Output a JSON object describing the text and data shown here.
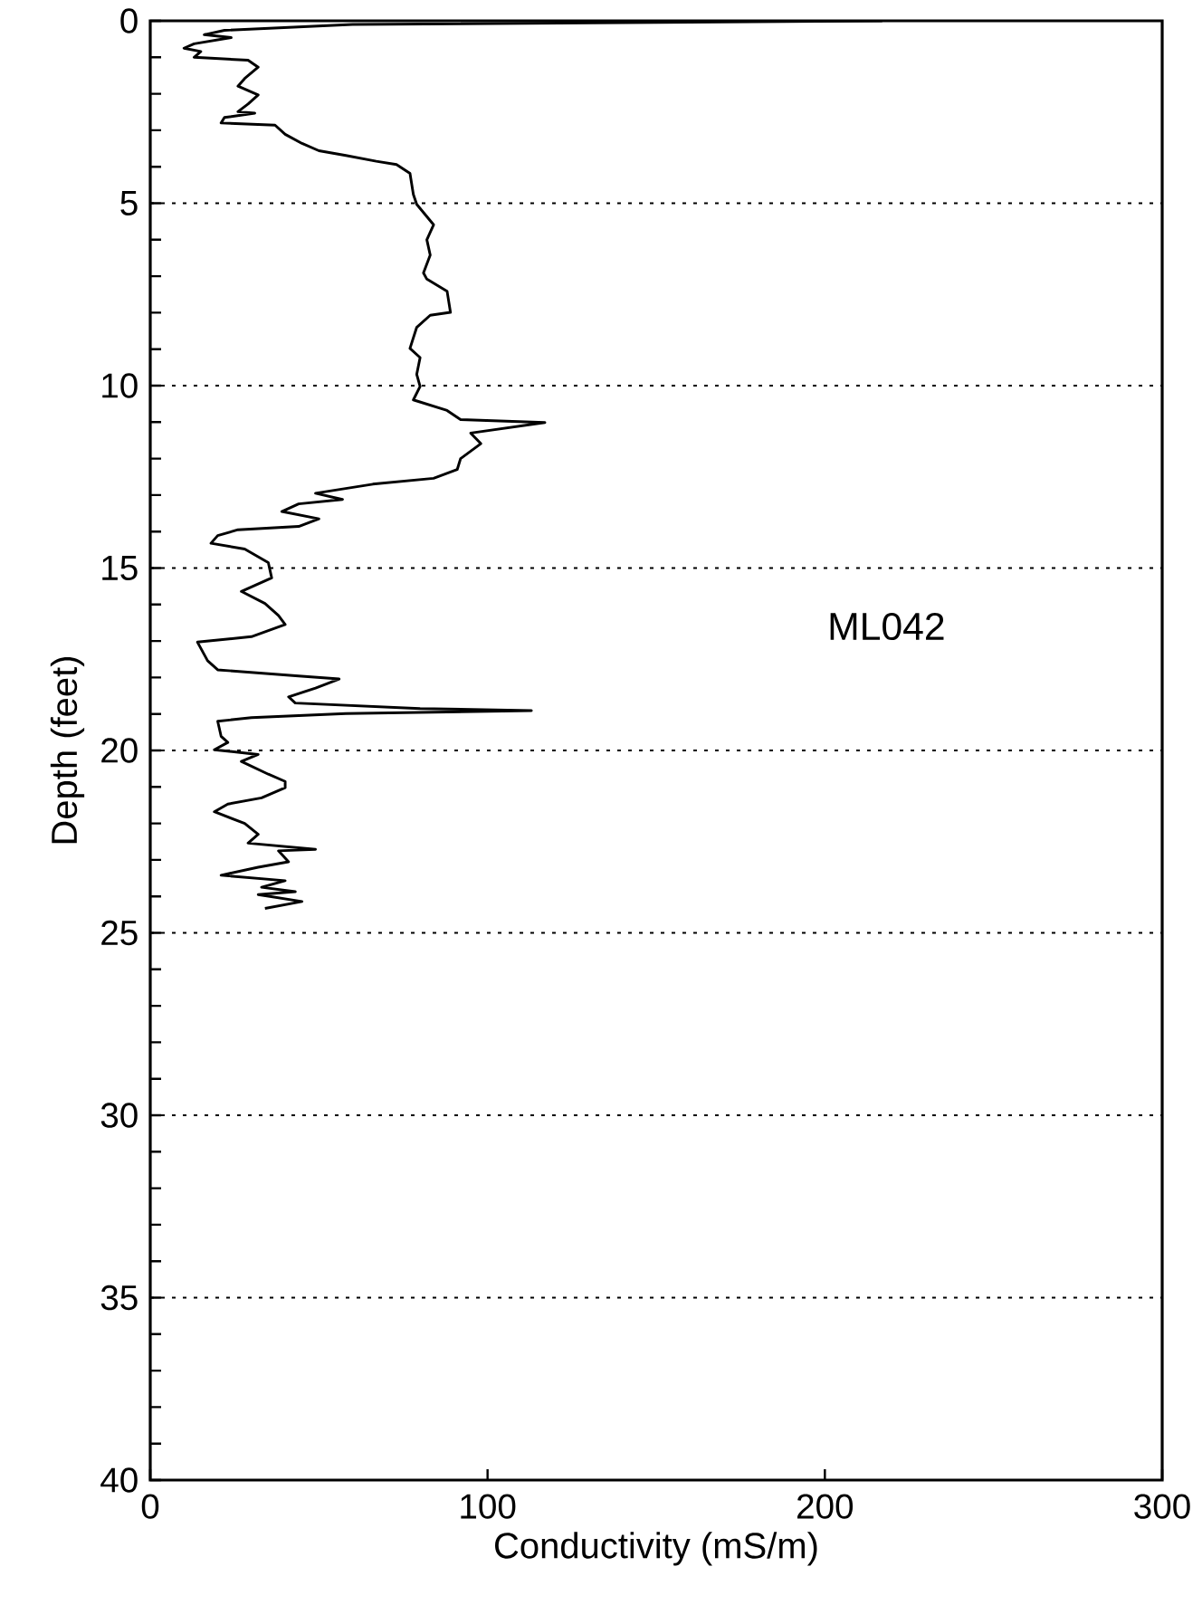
{
  "chart_data": {
    "type": "line",
    "xlabel": "Conductivity (mS/m)",
    "ylabel": "Depth (feet)",
    "annotations": [
      "ML042"
    ],
    "xlim": [
      0,
      300
    ],
    "ylim": [
      40,
      0
    ],
    "xticks": [
      0,
      100,
      200,
      300
    ],
    "yticks": [
      0,
      {
        "value": 1,
        "label": null
      },
      {
        "value": 2,
        "label": null
      },
      {
        "value": 3,
        "label": null
      },
      {
        "value": 4,
        "label": null
      },
      5,
      {
        "value": 6,
        "label": null
      },
      {
        "value": 7,
        "label": null
      },
      {
        "value": 8,
        "label": null
      },
      {
        "value": 9,
        "label": null
      },
      10,
      {
        "value": 11,
        "label": null
      },
      {
        "value": 12,
        "label": null
      },
      {
        "value": 13,
        "label": null
      },
      {
        "value": 14,
        "label": null
      },
      15,
      {
        "value": 16,
        "label": null
      },
      {
        "value": 17,
        "label": null
      },
      {
        "value": 18,
        "label": null
      },
      {
        "value": 19,
        "label": null
      },
      20,
      {
        "value": 21,
        "label": null
      },
      {
        "value": 22,
        "label": null
      },
      {
        "value": 23,
        "label": null
      },
      {
        "value": 24,
        "label": null
      },
      25,
      {
        "value": 26,
        "label": null
      },
      {
        "value": 27,
        "label": null
      },
      {
        "value": 28,
        "label": null
      },
      {
        "value": 29,
        "label": null
      },
      30,
      {
        "value": 31,
        "label": null
      },
      {
        "value": 32,
        "label": null
      },
      {
        "value": 33,
        "label": null
      },
      {
        "value": 34,
        "label": null
      },
      35,
      {
        "value": 36,
        "label": null
      },
      {
        "value": 37,
        "label": null
      },
      {
        "value": 38,
        "label": null
      },
      {
        "value": 39,
        "label": null
      },
      40
    ],
    "grid": "y",
    "line_style": "solid",
    "series": [
      {
        "color": "#000000",
        "x": [
          217,
          60,
          22,
          16,
          24,
          13,
          10,
          15,
          13,
          29,
          32,
          28,
          26,
          32,
          29,
          26,
          31,
          22,
          21,
          37,
          40,
          45,
          50,
          58,
          67,
          73,
          77,
          78,
          79,
          84,
          82,
          83,
          81,
          82,
          88,
          89,
          83,
          79,
          77,
          80,
          79,
          80,
          78,
          88,
          92,
          117,
          95,
          98,
          92,
          91,
          84,
          66,
          49,
          57,
          44,
          39,
          50,
          44,
          26,
          20,
          18,
          28,
          35,
          36,
          27,
          34,
          38,
          40,
          30,
          14,
          17,
          20,
          44,
          56,
          49,
          41,
          43,
          80,
          113,
          58,
          30,
          20,
          21,
          23,
          19,
          32,
          27,
          35,
          40,
          40,
          33,
          23,
          19,
          28,
          32,
          29,
          49,
          38,
          41,
          32,
          21,
          40,
          33,
          43,
          32,
          45,
          34
        ],
        "values": [
          0.0,
          0.1,
          0.26,
          0.38,
          0.46,
          0.63,
          0.75,
          0.84,
          1.0,
          1.08,
          1.27,
          1.58,
          1.79,
          2.03,
          2.28,
          2.49,
          2.53,
          2.65,
          2.8,
          2.86,
          3.11,
          3.36,
          3.56,
          3.69,
          3.85,
          3.94,
          4.18,
          4.76,
          5.03,
          5.59,
          6.0,
          6.42,
          6.91,
          7.08,
          7.41,
          7.99,
          8.07,
          8.4,
          8.98,
          9.23,
          9.69,
          10.02,
          10.39,
          10.68,
          10.93,
          11.01,
          11.3,
          11.59,
          12.0,
          12.3,
          12.54,
          12.7,
          12.95,
          13.12,
          13.24,
          13.45,
          13.65,
          13.86,
          13.95,
          14.11,
          14.32,
          14.48,
          14.85,
          15.27,
          15.64,
          15.97,
          16.3,
          16.55,
          16.88,
          17.03,
          17.54,
          17.79,
          17.96,
          18.04,
          18.29,
          18.53,
          18.7,
          18.85,
          18.91,
          18.99,
          19.1,
          19.2,
          19.61,
          19.78,
          19.98,
          20.11,
          20.3,
          20.65,
          20.85,
          21.02,
          21.3,
          21.47,
          21.68,
          22.0,
          22.3,
          22.54,
          22.71,
          22.75,
          23.05,
          23.2,
          23.42,
          23.57,
          23.75,
          23.87,
          23.95,
          24.14,
          24.33
        ]
      }
    ]
  }
}
